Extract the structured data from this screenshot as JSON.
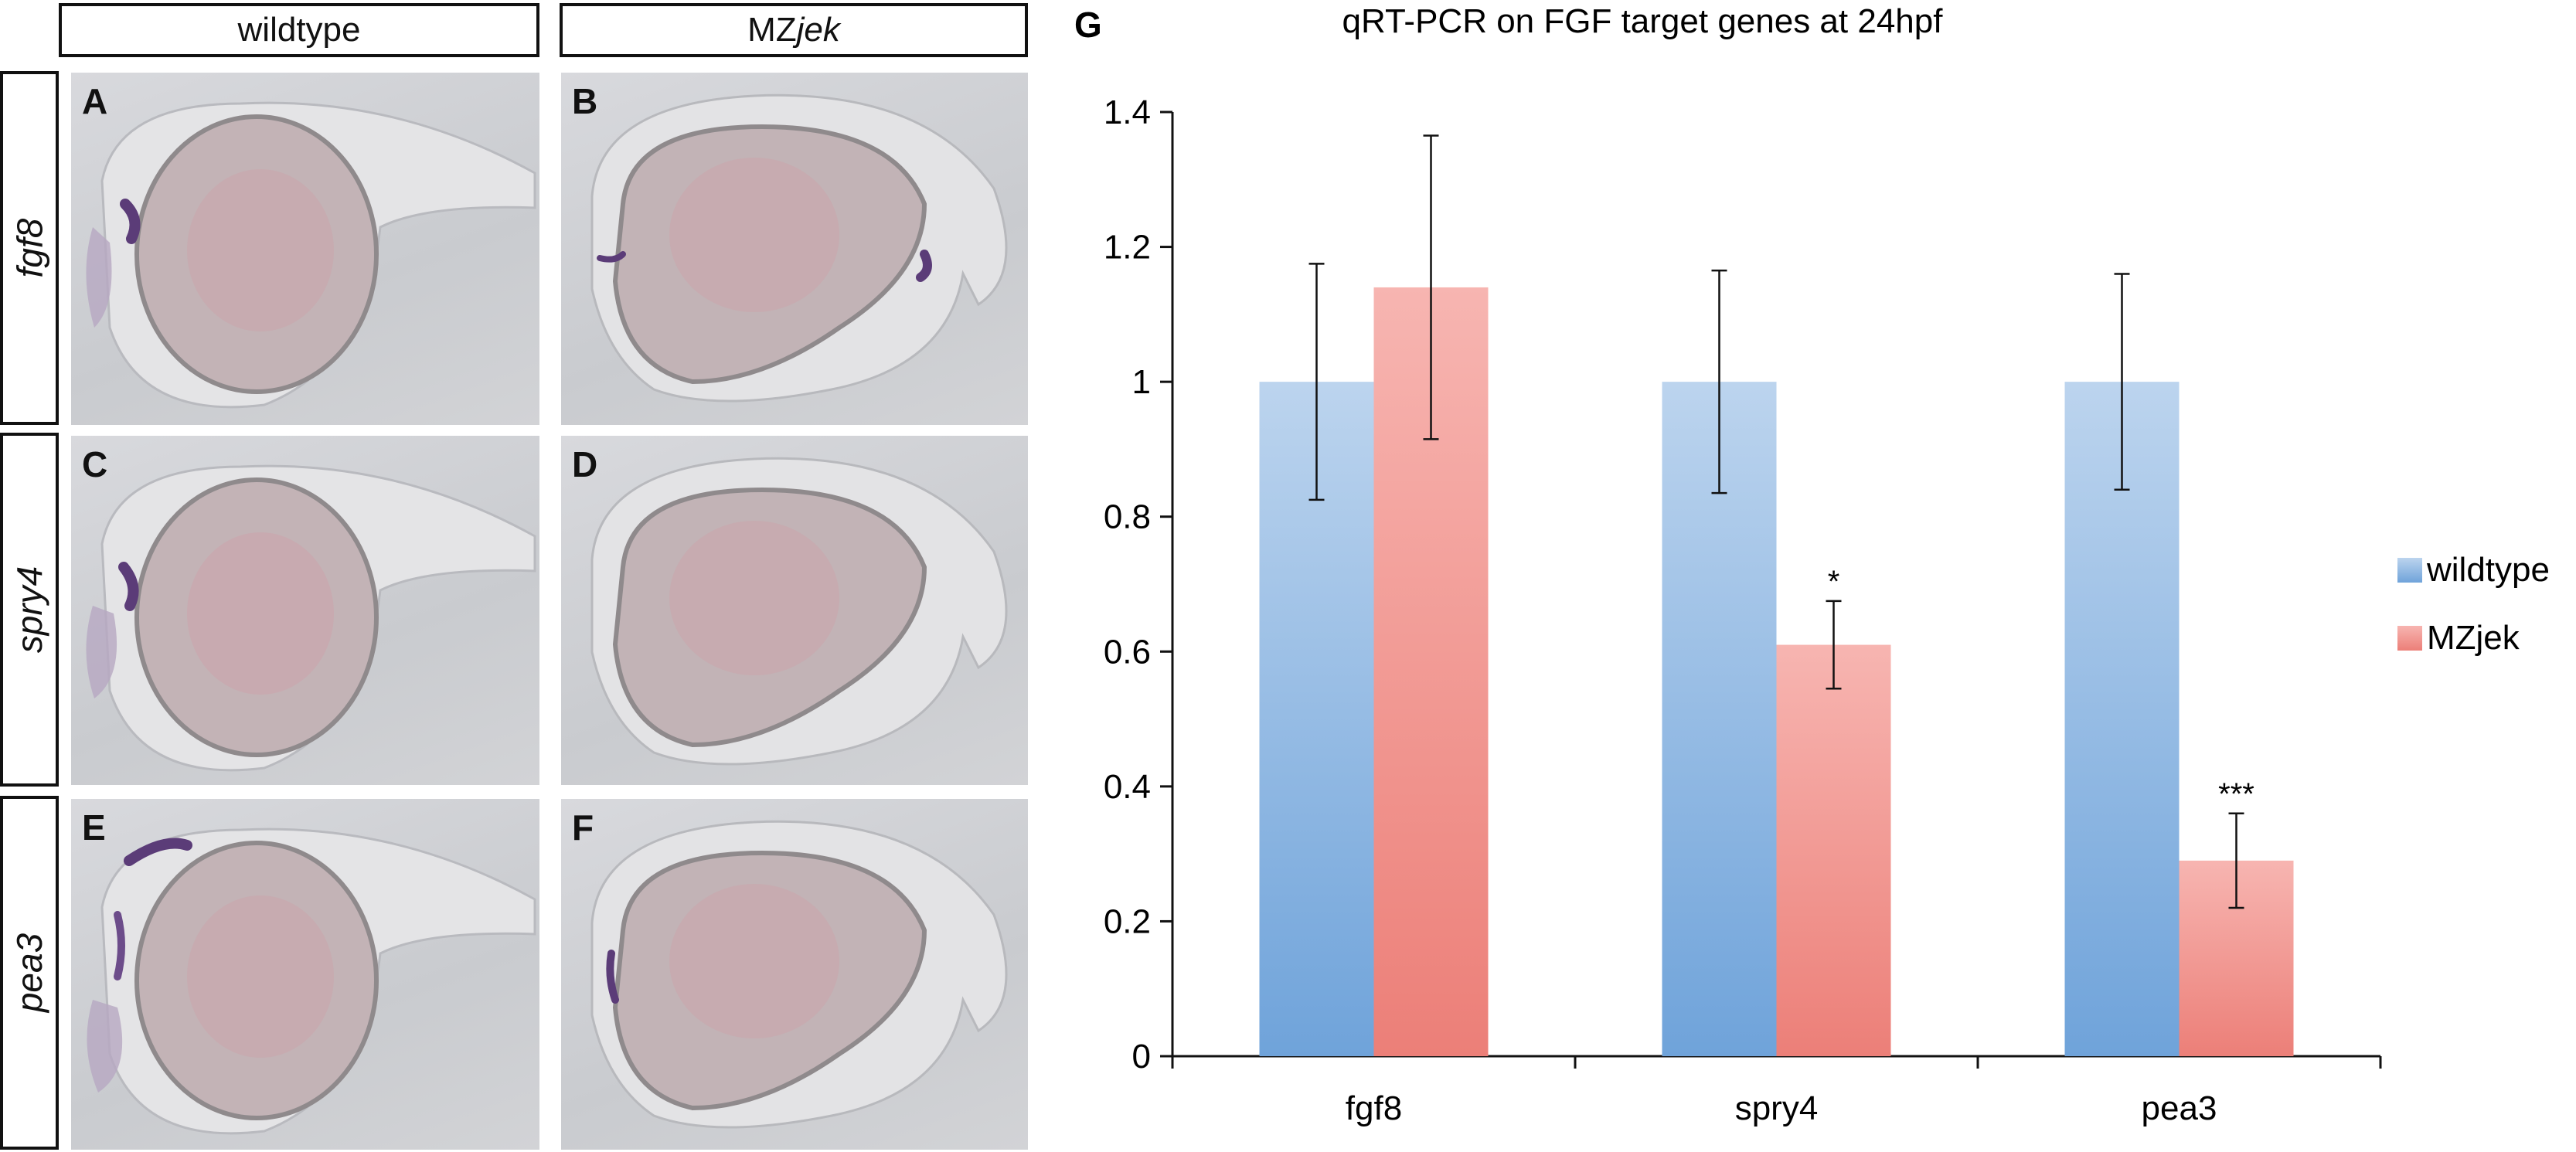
{
  "figure": {
    "columns": {
      "wildtype": "wildtype",
      "mz_prefix": "MZ",
      "mz_italic": "jek"
    },
    "rows": [
      "fgf8",
      "spry4",
      "pea3"
    ],
    "panel_letters": [
      "A",
      "B",
      "C",
      "D",
      "E",
      "F"
    ],
    "chart_letter": "G"
  },
  "chart_data": {
    "type": "bar",
    "title": "qRT-PCR on FGF target genes at 24hpf",
    "categories": [
      "fgf8",
      "spry4",
      "pea3"
    ],
    "series": [
      {
        "name": "wildtype",
        "values": [
          1.0,
          1.0,
          1.0
        ],
        "error": [
          0.175,
          0.165,
          0.16
        ],
        "color": "#6fa3da"
      },
      {
        "name": "MZjek",
        "values": [
          1.14,
          0.61,
          0.29
        ],
        "error": [
          0.225,
          0.065,
          0.07
        ],
        "color": "#ec7f78"
      }
    ],
    "significance": [
      {
        "category": "spry4",
        "series": "MZjek",
        "label": "*"
      },
      {
        "category": "pea3",
        "series": "MZjek",
        "label": "***"
      }
    ],
    "ylim": [
      0,
      1.4
    ],
    "yticks": [
      "0",
      "0.2",
      "0.4",
      "0.6",
      "0.8",
      "1",
      "1.2",
      "1.4"
    ],
    "grid": false,
    "legend_position": "right"
  }
}
